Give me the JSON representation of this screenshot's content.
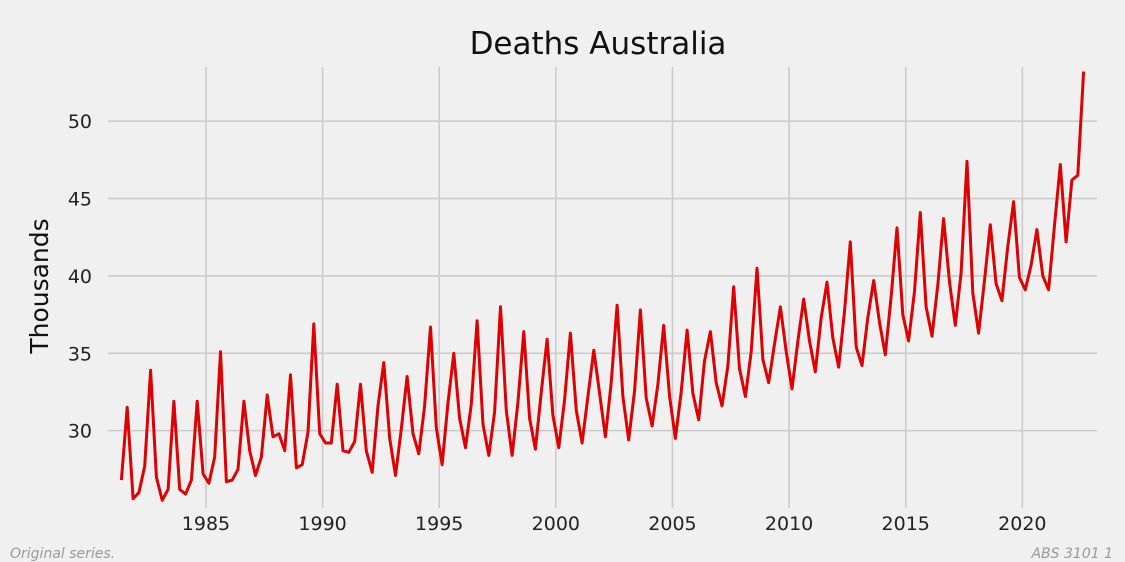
{
  "chart_data": {
    "type": "line",
    "title": "Deaths  Australia",
    "xlabel": "",
    "ylabel": "Thousands",
    "xlim": [
      1980.8,
      2023.2
    ],
    "ylim": [
      25.0,
      53.5
    ],
    "x_ticks": [
      "1985",
      "1990",
      "1995",
      "2000",
      "2005",
      "2010",
      "2015",
      "2020"
    ],
    "y_ticks": [
      "30",
      "35",
      "40",
      "45",
      "50"
    ],
    "grid": true,
    "line_color": "#dd0000",
    "series": [
      {
        "x_start": "1981-Q2",
        "frequency": "quarterly",
        "values": [
          26.8,
          31.5,
          25.6,
          26.0,
          27.7,
          33.9,
          27.0,
          25.5,
          26.2,
          31.9,
          26.2,
          25.9,
          26.8,
          31.9,
          27.2,
          26.6,
          28.3,
          35.1,
          26.7,
          26.8,
          27.5,
          31.9,
          28.7,
          27.1,
          28.3,
          32.3,
          29.6,
          29.8,
          28.7,
          33.6,
          27.6,
          27.8,
          29.9,
          36.9,
          29.8,
          29.2,
          29.2,
          33.0,
          28.7,
          28.6,
          29.3,
          33.0,
          28.7,
          27.3,
          31.6,
          34.4,
          29.5,
          27.1,
          30.1,
          33.5,
          29.8,
          28.5,
          31.6,
          36.7,
          30.2,
          27.8,
          31.8,
          35.0,
          30.8,
          28.9,
          31.7,
          37.1,
          30.4,
          28.4,
          31.2,
          38.0,
          31.3,
          28.4,
          31.8,
          36.4,
          30.8,
          28.8,
          32.5,
          35.9,
          31.0,
          28.9,
          32.0,
          36.3,
          31.3,
          29.2,
          32.2,
          35.2,
          32.4,
          29.6,
          33.1,
          38.1,
          32.2,
          29.4,
          32.6,
          37.8,
          32.1,
          30.3,
          33.0,
          36.8,
          32.2,
          29.5,
          32.5,
          36.5,
          32.4,
          30.7,
          34.5,
          36.4,
          33.1,
          31.6,
          34.2,
          39.3,
          34.0,
          32.2,
          35.1,
          40.5,
          34.6,
          33.1,
          35.6,
          38.0,
          35.1,
          32.7,
          35.8,
          38.5,
          35.8,
          33.8,
          37.3,
          39.6,
          36.0,
          34.1,
          37.7,
          42.2,
          35.4,
          34.2,
          37.3,
          39.7,
          37.0,
          34.9,
          38.7,
          43.1,
          37.5,
          35.8,
          39.0,
          44.1,
          38.0,
          36.1,
          39.4,
          43.7,
          39.6,
          36.8,
          40.2,
          47.4,
          38.9,
          36.3,
          39.7,
          43.3,
          39.5,
          38.4,
          41.9,
          44.8,
          39.9,
          39.1,
          40.7,
          43.0,
          40.0,
          39.1,
          43.2,
          47.2,
          42.2,
          46.2,
          46.5,
          53.2
        ]
      }
    ]
  },
  "notes": {
    "left": "Original series.",
    "right": "ABS 3101 1"
  }
}
